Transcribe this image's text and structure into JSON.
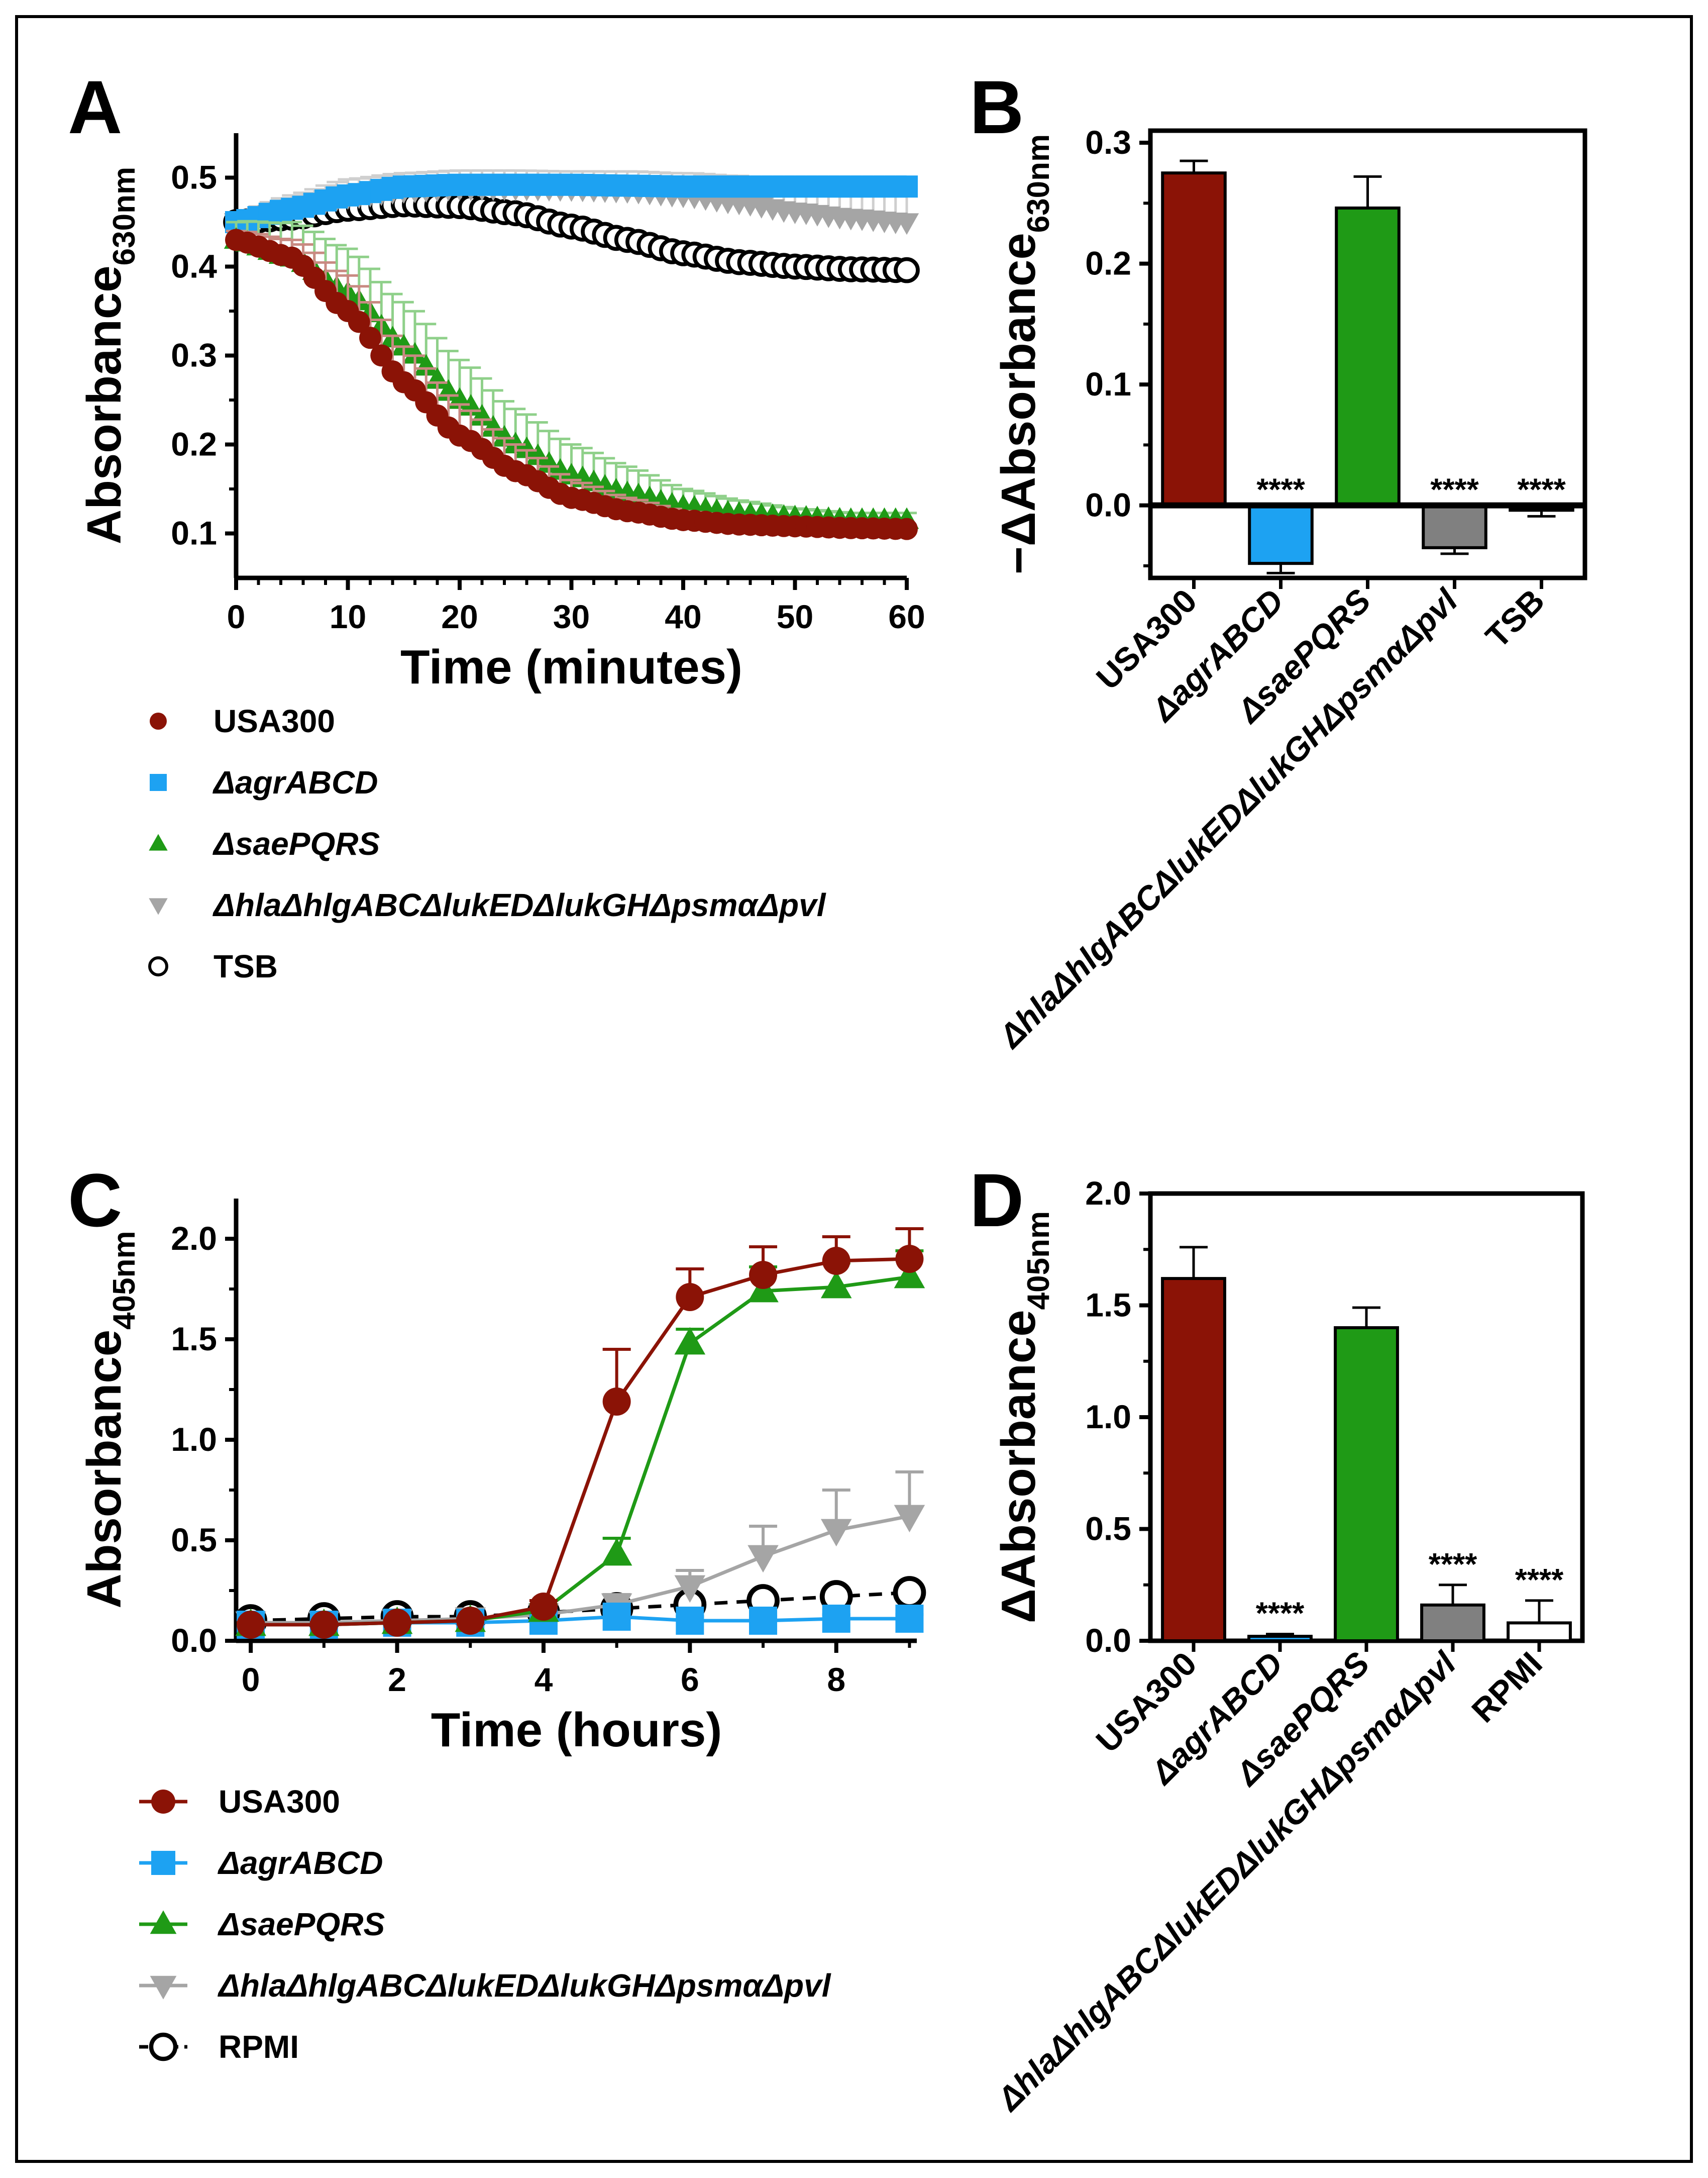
{
  "colors": {
    "usa300": "#8b1306",
    "agr": "#1da2f2",
    "sae": "#1f9a16",
    "tox": "#a5a5a5",
    "blank": "#000000",
    "toxbar": "#808080"
  },
  "legend_icons": [
    "filled-circle-marker",
    "filled-square-marker",
    "filled-triangle-marker",
    "filled-down-triangle-marker",
    "open-circle-marker"
  ],
  "chart_data": [
    {
      "panel": "A",
      "type": "line",
      "xlabel": "Time (minutes)",
      "ylabel": "Absorbance",
      "ylabel_sub": "630nm",
      "xlim": [
        0,
        60
      ],
      "ylim": [
        0.05,
        0.55
      ],
      "xticks": [
        "0",
        "10",
        "20",
        "30",
        "40",
        "50",
        "60"
      ],
      "yticks": [
        "0.1",
        "0.2",
        "0.3",
        "0.4",
        "0.5"
      ],
      "ytick_values": [
        0.1,
        0.2,
        0.3,
        0.4,
        0.5
      ],
      "x": [
        0,
        5,
        10,
        15,
        20,
        25,
        30,
        35,
        40,
        45,
        50,
        55,
        60
      ],
      "series": [
        {
          "name": "USA300",
          "key": "usa300",
          "values": [
            0.43,
            0.41,
            0.35,
            0.27,
            0.21,
            0.17,
            0.14,
            0.125,
            0.115,
            0.11,
            0.108,
            0.106,
            0.105
          ],
          "error": [
            0.01,
            0.02,
            0.04,
            0.04,
            0.035,
            0.03,
            0.02,
            0.015,
            0.01,
            0.008,
            0.005,
            0.004,
            0.004
          ]
        },
        {
          "name": "ΔagrABCD",
          "key": "agr",
          "values": [
            0.45,
            0.465,
            0.48,
            0.49,
            0.492,
            0.492,
            0.492,
            0.491,
            0.49,
            0.49,
            0.49,
            0.49,
            0.49
          ],
          "error": [
            0.01,
            0.01,
            0.01,
            0.01,
            0.01,
            0.01,
            0.01,
            0.01,
            0.01,
            0.01,
            0.01,
            0.01,
            0.01
          ]
        },
        {
          "name": "ΔsaePQRS",
          "key": "sae",
          "values": [
            0.43,
            0.41,
            0.37,
            0.31,
            0.25,
            0.2,
            0.165,
            0.145,
            0.13,
            0.122,
            0.118,
            0.115,
            0.115
          ],
          "error": [
            0.02,
            0.04,
            0.05,
            0.05,
            0.045,
            0.04,
            0.035,
            0.03,
            0.02,
            0.015,
            0.01,
            0.008,
            0.008
          ]
        },
        {
          "name": "ΔhlaΔhlgABCΔlukEDΔlukGHΔpsmαΔpvl",
          "key": "tox",
          "values": [
            0.45,
            0.465,
            0.478,
            0.485,
            0.488,
            0.488,
            0.487,
            0.485,
            0.48,
            0.472,
            0.462,
            0.455,
            0.45
          ],
          "error": [
            0.01,
            0.015,
            0.02,
            0.02,
            0.02,
            0.02,
            0.02,
            0.022,
            0.025,
            0.03,
            0.03,
            0.03,
            0.03
          ]
        },
        {
          "name": "TSB",
          "key": "blank",
          "values": [
            0.45,
            0.455,
            0.465,
            0.47,
            0.468,
            0.46,
            0.445,
            0.43,
            0.415,
            0.405,
            0.4,
            0.397,
            0.396
          ],
          "error": [
            0,
            0,
            0,
            0,
            0,
            0,
            0,
            0,
            0,
            0,
            0,
            0,
            0
          ]
        }
      ]
    },
    {
      "panel": "B",
      "type": "bar",
      "ylabel": "−ΔAbsorbance",
      "ylabel_sub": "630nm",
      "ylim": [
        -0.06,
        0.31
      ],
      "yticks": [
        "0.0",
        "0.1",
        "0.2",
        "0.3"
      ],
      "ytick_values": [
        0.0,
        0.1,
        0.2,
        0.3
      ],
      "categories": [
        "USA300",
        "ΔagrABCD",
        "ΔsaePQRS",
        "ΔhlaΔhlgABCΔlukEDΔlukGHΔpsmαΔpvl",
        "TSB"
      ],
      "keys": [
        "usa300",
        "agr",
        "sae",
        "toxbar",
        "blank"
      ],
      "values": [
        0.275,
        -0.048,
        0.246,
        -0.035,
        -0.004
      ],
      "error": [
        0.01,
        0.008,
        0.026,
        0.005,
        0.005
      ],
      "significance": [
        "",
        "****",
        "",
        "****",
        "****"
      ]
    },
    {
      "panel": "C",
      "type": "line",
      "xlabel": "Time (hours)",
      "ylabel": "Absorbance",
      "ylabel_sub": "405nm",
      "xlim": [
        -0.2,
        9.1
      ],
      "ylim": [
        0,
        2.2
      ],
      "xticks": [
        "0",
        "2",
        "4",
        "6",
        "8"
      ],
      "xtick_values": [
        0,
        2,
        4,
        6,
        8
      ],
      "yticks": [
        "0.0",
        "0.5",
        "1.0",
        "1.5",
        "2.0"
      ],
      "ytick_values": [
        0.0,
        0.5,
        1.0,
        1.5,
        2.0
      ],
      "x": [
        0,
        1,
        2,
        3,
        4,
        5,
        6,
        7,
        8,
        9
      ],
      "series": [
        {
          "name": "USA300",
          "key": "usa300",
          "values": [
            0.08,
            0.08,
            0.09,
            0.1,
            0.17,
            1.19,
            1.71,
            1.82,
            1.89,
            1.9
          ],
          "error": [
            0.01,
            0.01,
            0.01,
            0.01,
            0.03,
            0.26,
            0.14,
            0.14,
            0.12,
            0.15
          ]
        },
        {
          "name": "ΔagrABCD",
          "key": "agr",
          "values": [
            0.08,
            0.08,
            0.09,
            0.09,
            0.1,
            0.12,
            0.1,
            0.1,
            0.11,
            0.11
          ],
          "error": [
            0.01,
            0.01,
            0.01,
            0.01,
            0.01,
            0.02,
            0.02,
            0.02,
            0.02,
            0.02
          ]
        },
        {
          "name": "ΔsaePQRS",
          "key": "sae",
          "values": [
            0.08,
            0.08,
            0.09,
            0.1,
            0.15,
            0.43,
            1.48,
            1.74,
            1.76,
            1.81
          ],
          "error": [
            0.01,
            0.01,
            0.01,
            0.01,
            0.03,
            0.08,
            0.07,
            0.12,
            0.12,
            0.13
          ]
        },
        {
          "name": "ΔhlaΔhlgABCΔlukEDΔlukGHΔpsmαΔpvl",
          "key": "tox",
          "values": [
            0.09,
            0.09,
            0.1,
            0.11,
            0.13,
            0.18,
            0.27,
            0.42,
            0.55,
            0.62
          ],
          "error": [
            0.01,
            0.01,
            0.01,
            0.01,
            0.02,
            0.05,
            0.08,
            0.15,
            0.2,
            0.22
          ]
        },
        {
          "name": "RPMI",
          "key": "blank",
          "values": [
            0.1,
            0.11,
            0.12,
            0.12,
            0.14,
            0.16,
            0.18,
            0.2,
            0.22,
            0.24
          ],
          "error": [
            0,
            0,
            0,
            0,
            0,
            0,
            0,
            0,
            0,
            0
          ]
        }
      ]
    },
    {
      "panel": "D",
      "type": "bar",
      "ylabel": "ΔAbsorbance",
      "ylabel_sub": "405nm",
      "ylim": [
        0,
        2.0
      ],
      "yticks": [
        "0.0",
        "0.5",
        "1.0",
        "1.5",
        "2.0"
      ],
      "ytick_values": [
        0.0,
        0.5,
        1.0,
        1.5,
        2.0
      ],
      "categories": [
        "USA300",
        "ΔagrABCD",
        "ΔsaePQRS",
        "ΔhlaΔhlgABCΔlukEDΔlukGHΔpsmαΔpvl",
        "RPMI"
      ],
      "keys": [
        "usa300",
        "agr",
        "sae",
        "toxbar",
        "white"
      ],
      "values": [
        1.62,
        0.02,
        1.4,
        0.16,
        0.08
      ],
      "error": [
        0.14,
        0.01,
        0.09,
        0.09,
        0.1
      ],
      "significance": [
        "",
        "****",
        "",
        "****",
        "****"
      ]
    }
  ],
  "legend_a": [
    "USA300",
    "ΔagrABCD",
    "ΔsaePQRS",
    "ΔhlaΔhlgABCΔlukEDΔlukGHΔpsmαΔpvl",
    "TSB"
  ],
  "legend_c": [
    "USA300",
    "ΔagrABCD",
    "ΔsaePQRS",
    "ΔhlaΔhlgABCΔlukEDΔlukGHΔpsmαΔpvl",
    "RPMI"
  ]
}
